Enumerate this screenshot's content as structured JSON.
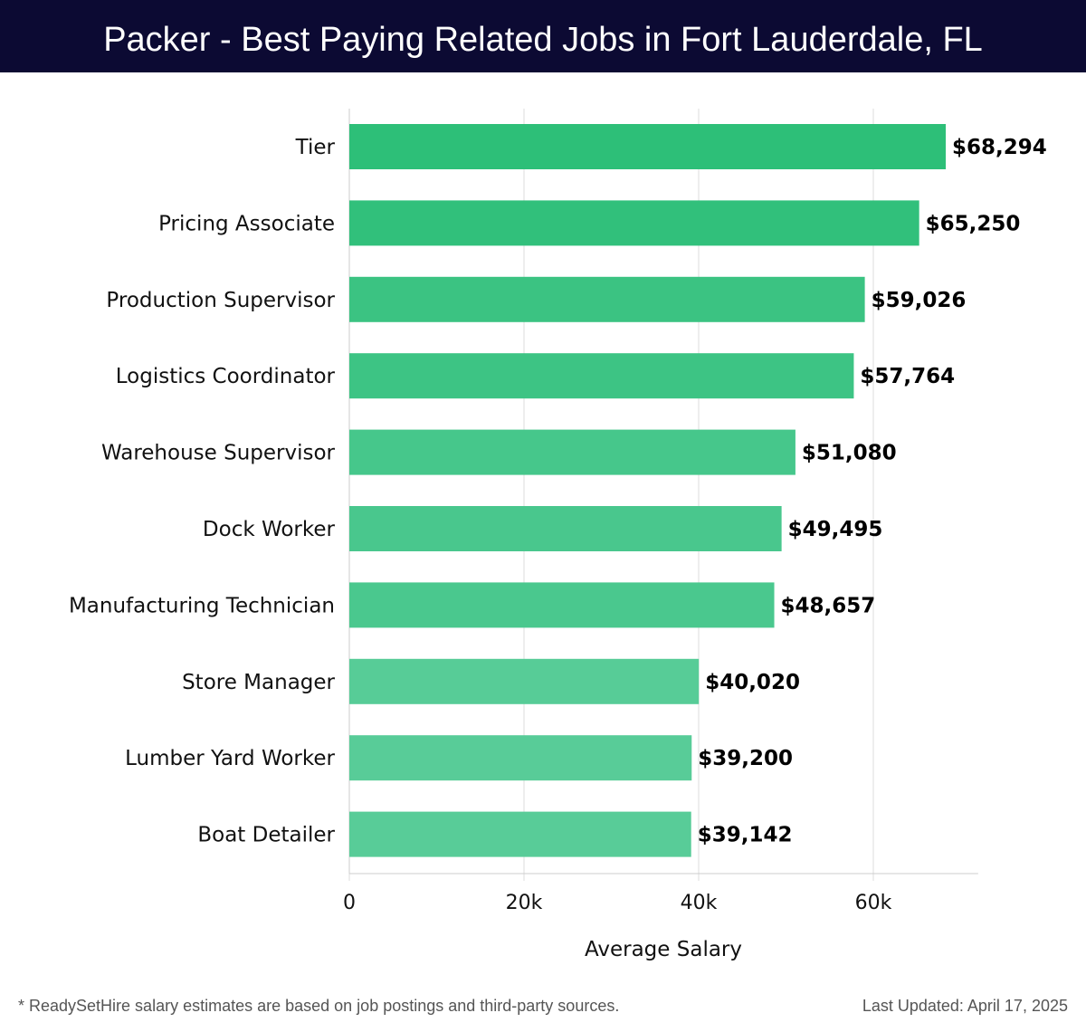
{
  "title": "Packer - Best Paying Related Jobs in Fort Lauderdale, FL",
  "chart_data": {
    "type": "bar",
    "orientation": "horizontal",
    "title": "Packer - Best Paying Related Jobs in Fort Lauderdale, FL",
    "categories": [
      "Tier",
      "Pricing Associate",
      "Production Supervisor",
      "Logistics Coordinator",
      "Warehouse Supervisor",
      "Dock Worker",
      "Manufacturing Technician",
      "Store Manager",
      "Lumber Yard Worker",
      "Boat Detailer"
    ],
    "values": [
      68294,
      65250,
      59026,
      57764,
      51080,
      49495,
      48657,
      40020,
      39200,
      39142
    ],
    "value_labels": [
      "$68,294",
      "$65,250",
      "$59,026",
      "$57,764",
      "$51,080",
      "$49,495",
      "$48,657",
      "$40,020",
      "$39,200",
      "$39,142"
    ],
    "xlabel": "Average Salary",
    "ylabel": "",
    "xlim": [
      0,
      72000
    ],
    "xticks": [
      0,
      20000,
      40000,
      60000
    ],
    "xtick_labels": [
      "0",
      "20k",
      "40k",
      "60k"
    ],
    "grid": true,
    "colors": {
      "high": "#2dbf78",
      "low": "#58cc98"
    }
  },
  "footer": {
    "note": "* ReadySetHire salary estimates are based on job postings and third-party sources.",
    "updated": "Last Updated: April 17, 2025"
  }
}
